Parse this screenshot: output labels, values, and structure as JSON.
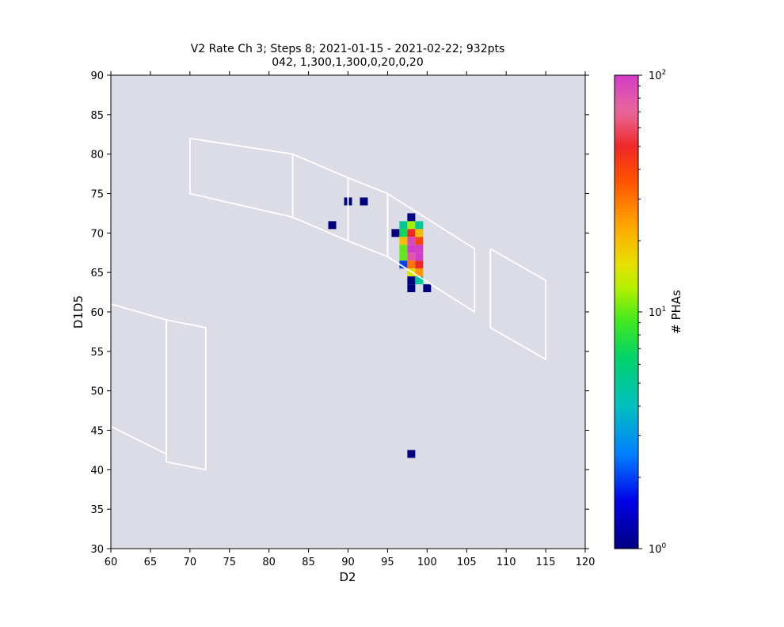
{
  "chart_data": {
    "type": "heatmap",
    "title_line1": "V2 Rate Ch 3; Steps 8; 2021-01-15 - 2021-02-22; 932pts",
    "title_line2": "042, 1,300,1,300,0,20,0,20",
    "xlabel": "D2",
    "ylabel": "D1D5",
    "xlim": [
      60,
      120
    ],
    "ylim": [
      30,
      90
    ],
    "x_ticks": [
      60,
      65,
      70,
      75,
      80,
      85,
      90,
      95,
      100,
      105,
      110,
      115,
      120
    ],
    "y_ticks": [
      30,
      35,
      40,
      45,
      50,
      55,
      60,
      65,
      70,
      75,
      80,
      85,
      90
    ],
    "background_color": "#dcdce6",
    "colorbar": {
      "label": "# PHAs",
      "scale": "log",
      "min": 1,
      "max": 100,
      "tick_labels": [
        {
          "base": "10",
          "exp": "0",
          "value": 1
        },
        {
          "base": "10",
          "exp": "1",
          "value": 10
        },
        {
          "base": "10",
          "exp": "2",
          "value": 100
        }
      ]
    },
    "cells": [
      {
        "x": 89.5,
        "y": 73.5,
        "w": 0.5,
        "v": 1
      },
      {
        "x": 90.0,
        "y": 73.5,
        "w": 0.5,
        "v": 1
      },
      {
        "x": 91.5,
        "y": 73.5,
        "v": 1
      },
      {
        "x": 87.5,
        "y": 70.5,
        "v": 1
      },
      {
        "x": 97.5,
        "y": 71.5,
        "v": 1
      },
      {
        "x": 95.5,
        "y": 69.5,
        "v": 1
      },
      {
        "x": 96.5,
        "y": 70.5,
        "v": 5
      },
      {
        "x": 97.5,
        "y": 70.5,
        "v": 12
      },
      {
        "x": 98.5,
        "y": 70.5,
        "v": 5
      },
      {
        "x": 96.5,
        "y": 69.5,
        "v": 7
      },
      {
        "x": 97.5,
        "y": 69.5,
        "v": 50
      },
      {
        "x": 98.5,
        "y": 69.5,
        "v": 20
      },
      {
        "x": 96.5,
        "y": 68.5,
        "v": 20
      },
      {
        "x": 97.5,
        "y": 68.5,
        "v": 90
      },
      {
        "x": 98.5,
        "y": 68.5,
        "v": 40
      },
      {
        "x": 96.5,
        "y": 67.5,
        "v": 10
      },
      {
        "x": 97.5,
        "y": 67.5,
        "v": 100
      },
      {
        "x": 98.5,
        "y": 67.5,
        "v": 100
      },
      {
        "x": 96.5,
        "y": 66.5,
        "v": 10
      },
      {
        "x": 97.5,
        "y": 66.5,
        "v": 80
      },
      {
        "x": 98.5,
        "y": 66.5,
        "v": 100
      },
      {
        "x": 96.5,
        "y": 65.5,
        "v": 2
      },
      {
        "x": 97.5,
        "y": 65.5,
        "v": 30
      },
      {
        "x": 98.5,
        "y": 65.5,
        "v": 50
      },
      {
        "x": 97.5,
        "y": 64.5,
        "v": 15
      },
      {
        "x": 98.5,
        "y": 64.5,
        "v": 25
      },
      {
        "x": 97.5,
        "y": 63.5,
        "v": 1
      },
      {
        "x": 98.5,
        "y": 63.5,
        "v": 5
      },
      {
        "x": 97.5,
        "y": 62.5,
        "v": 1
      },
      {
        "x": 99.5,
        "y": 62.5,
        "v": 1
      },
      {
        "x": 97.5,
        "y": 41.5,
        "v": 1
      }
    ],
    "polygons": [
      [
        [
          70,
          82
        ],
        [
          83,
          80
        ],
        [
          83,
          72
        ],
        [
          70,
          75
        ],
        [
          70,
          82
        ]
      ],
      [
        [
          83,
          80
        ],
        [
          90,
          77
        ],
        [
          90,
          69
        ],
        [
          83,
          72
        ],
        [
          83,
          80
        ]
      ],
      [
        [
          90,
          77
        ],
        [
          95,
          75
        ],
        [
          95,
          67
        ],
        [
          90,
          69
        ],
        [
          90,
          77
        ]
      ],
      [
        [
          95,
          75
        ],
        [
          106,
          68
        ],
        [
          106,
          60
        ],
        [
          95,
          67
        ],
        [
          95,
          75
        ]
      ],
      [
        [
          108,
          68
        ],
        [
          115,
          64
        ],
        [
          115,
          54
        ],
        [
          108,
          58
        ],
        [
          108,
          68
        ]
      ],
      [
        [
          60,
          61
        ],
        [
          67,
          59
        ],
        [
          67,
          42
        ],
        [
          60,
          45.5
        ]
      ],
      [
        [
          67,
          59
        ],
        [
          72,
          58
        ],
        [
          72,
          40
        ],
        [
          67,
          41
        ],
        [
          67,
          59
        ]
      ]
    ],
    "polygon_color": "#ffffff",
    "grid": false
  }
}
